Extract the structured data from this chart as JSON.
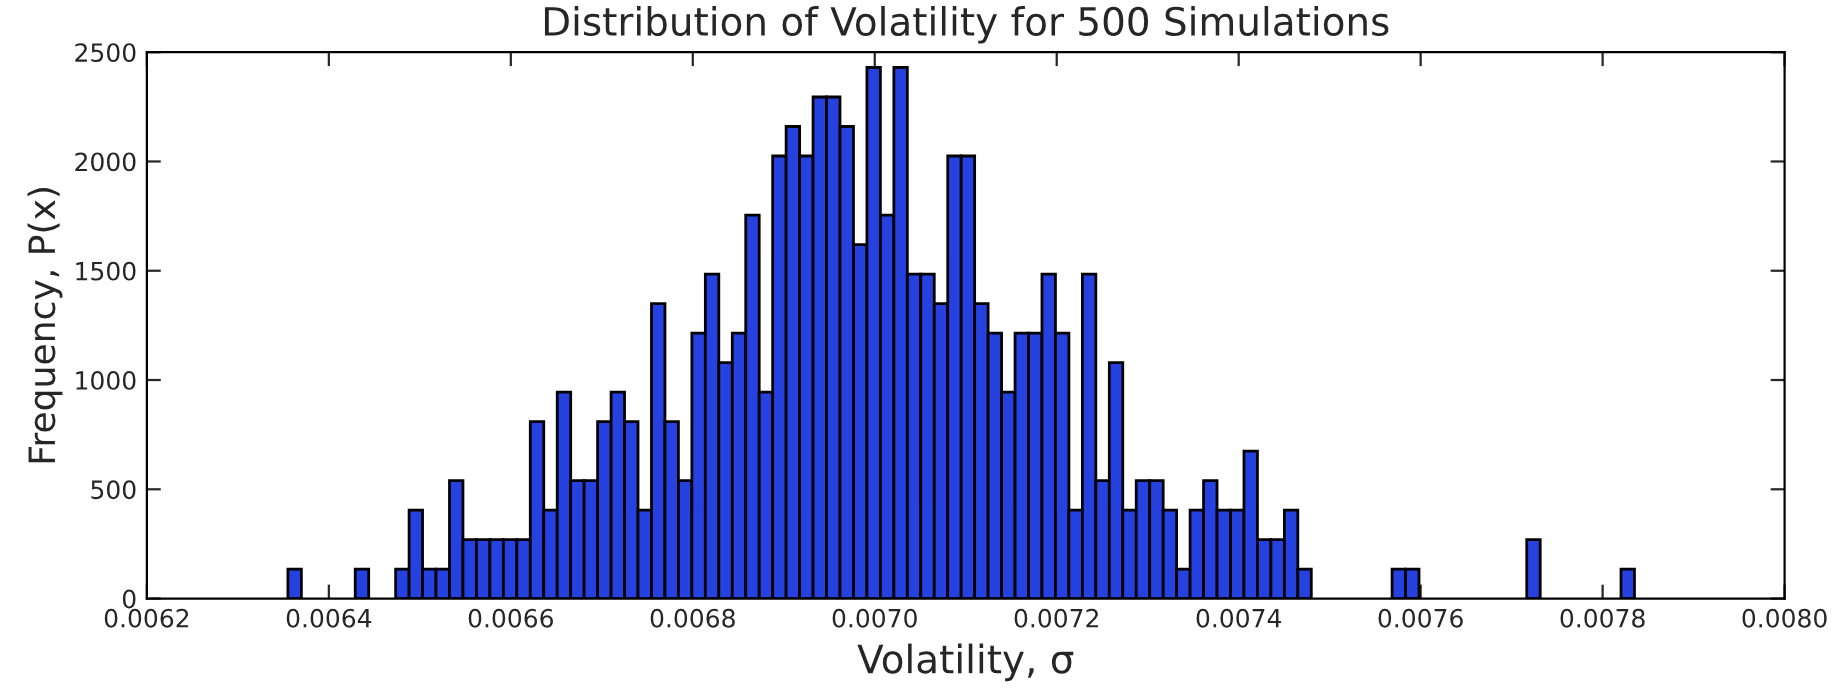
{
  "chart_data": {
    "type": "histogram",
    "title": "Distribution of Volatility for 500 Simulations",
    "xlabel": "Volatility, σ",
    "ylabel": "Frequency, P(x)",
    "color": "#2541e0",
    "bins": [
      0.006355,
      0.0063698,
      0.0063846,
      0.0063994,
      0.0064142,
      0.006429,
      0.0064438,
      0.0064586,
      0.0064734,
      0.0064882,
      0.006503,
      0.0065178,
      0.0065326,
      0.0065474,
      0.0065622,
      0.006577,
      0.0065918,
      0.0066066,
      0.0066214,
      0.0066362,
      0.006651,
      0.0066658,
      0.0066806,
      0.0066954,
      0.0067102,
      0.006725,
      0.0067398,
      0.0067546,
      0.0067694,
      0.0067842,
      0.006799,
      0.0068138,
      0.0068286,
      0.0068434,
      0.0068582,
      0.006873,
      0.0068878,
      0.0069026,
      0.0069174,
      0.0069322,
      0.006947,
      0.0069618,
      0.0069766,
      0.0069914,
      0.0070062,
      0.007021,
      0.0070358,
      0.0070506,
      0.0070654,
      0.0070802,
      0.007095,
      0.0071098,
      0.0071246,
      0.0071394,
      0.0071542,
      0.007169,
      0.0071838,
      0.0071986,
      0.0072134,
      0.0072282,
      0.007243,
      0.0072578,
      0.0072726,
      0.0072874,
      0.0073022,
      0.007317,
      0.0073318,
      0.0073466,
      0.0073614,
      0.0073762,
      0.007391,
      0.0074058,
      0.0074206,
      0.0074354,
      0.0074502,
      0.007465,
      0.0074798,
      0.0074946,
      0.0075094,
      0.0075242,
      0.007539,
      0.0075538,
      0.0075686,
      0.0075834,
      0.0075982,
      0.007613,
      0.0076278,
      0.0076426,
      0.0076574,
      0.0076722,
      0.007687,
      0.0077018,
      0.0077166,
      0.0077314,
      0.0077462,
      0.007761,
      0.0077758,
      0.0077906,
      0.0078054,
      0.0078202,
      0.007835
    ],
    "values": [
      135,
      0,
      0,
      0,
      0,
      135,
      0,
      0,
      135,
      405,
      135,
      135,
      540,
      270,
      270,
      270,
      270,
      270,
      810,
      405,
      945,
      540,
      540,
      810,
      945,
      810,
      405,
      1350,
      810,
      540,
      1215,
      1485,
      1080,
      1215,
      1755,
      945,
      2025,
      2160,
      2025,
      2295,
      2295,
      2160,
      1620,
      2430,
      1755,
      2430,
      1485,
      1485,
      1350,
      2025,
      2025,
      1350,
      1215,
      945,
      1215,
      1215,
      1485,
      1215,
      405,
      1485,
      540,
      1080,
      405,
      540,
      540,
      405,
      135,
      405,
      540,
      405,
      405,
      675,
      270,
      270,
      405,
      135,
      0,
      0,
      0,
      0,
      0,
      0,
      135,
      135,
      0,
      0,
      0,
      0,
      0,
      0,
      0,
      0,
      270,
      0,
      0,
      0,
      0,
      0,
      0,
      135
    ],
    "xlim": [
      0.0062,
      0.008
    ],
    "xticks": [
      {
        "value": 0.0062,
        "label": "0.0062"
      },
      {
        "value": 0.0064,
        "label": "0.0064"
      },
      {
        "value": 0.0066,
        "label": "0.0066"
      },
      {
        "value": 0.0068,
        "label": "0.0068"
      },
      {
        "value": 0.007,
        "label": "0.0070"
      },
      {
        "value": 0.0072,
        "label": "0.0072"
      },
      {
        "value": 0.0074,
        "label": "0.0074"
      },
      {
        "value": 0.0076,
        "label": "0.0076"
      },
      {
        "value": 0.0078,
        "label": "0.0078"
      },
      {
        "value": 0.008,
        "label": "0.0080"
      }
    ],
    "ylim": [
      0,
      2500
    ],
    "yticks": [
      0,
      500,
      1000,
      1500,
      2000,
      2500
    ],
    "grid": false
  }
}
